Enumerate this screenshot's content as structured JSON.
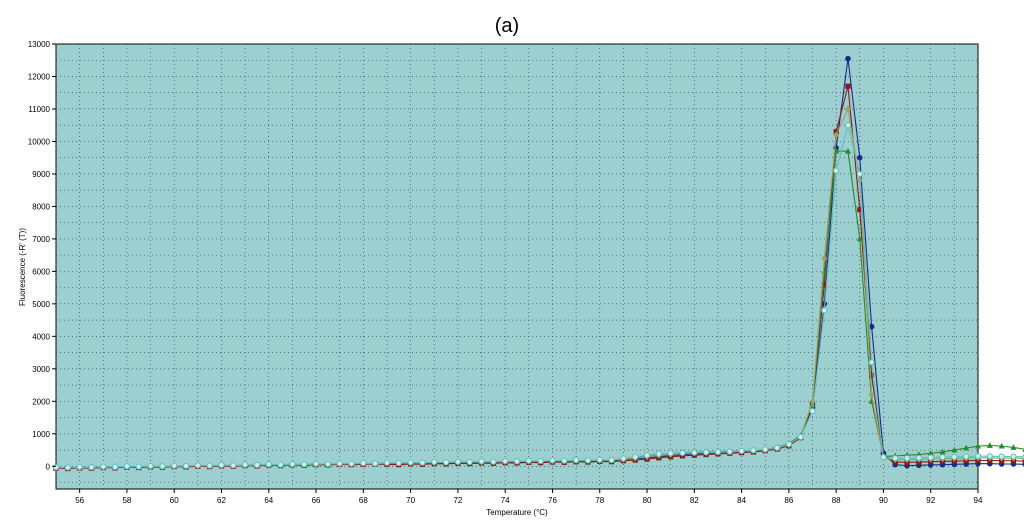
{
  "chart_data": {
    "type": "line",
    "title": "(a)",
    "xlabel": "Temperature (°C)",
    "ylabel": "Fluorescence (-R' (T))",
    "xlim": [
      55,
      94
    ],
    "ylim": [
      -700,
      13000
    ],
    "x_ticks": [
      56,
      58,
      60,
      62,
      64,
      66,
      68,
      70,
      72,
      74,
      76,
      78,
      80,
      82,
      84,
      86,
      88,
      90,
      92,
      94
    ],
    "y_ticks": [
      0,
      1000,
      2000,
      3000,
      4000,
      5000,
      6000,
      7000,
      8000,
      9000,
      10000,
      11000,
      12000,
      13000
    ],
    "grid": true,
    "background_color": "#9ccfcf",
    "x_start": 55,
    "x_step": 0.5,
    "series": [
      {
        "color": "#1a2a8c",
        "marker": "circle",
        "values": [
          -50,
          -60,
          -40,
          -50,
          -30,
          -40,
          -20,
          -30,
          -10,
          -20,
          0,
          -10,
          10,
          0,
          20,
          10,
          30,
          20,
          40,
          30,
          50,
          40,
          60,
          50,
          70,
          60,
          80,
          70,
          90,
          80,
          100,
          90,
          100,
          90,
          110,
          100,
          120,
          110,
          130,
          120,
          140,
          130,
          150,
          140,
          160,
          150,
          170,
          160,
          200,
          230,
          260,
          300,
          330,
          360,
          380,
          400,
          420,
          430,
          450,
          470,
          500,
          550,
          650,
          900,
          1800,
          5000,
          9800,
          12550,
          9500,
          4300,
          400,
          50,
          20,
          30,
          40,
          50,
          60,
          70,
          80,
          80,
          70,
          70,
          60,
          50,
          40
        ]
      },
      {
        "color": "#8b1a1a",
        "marker": "square",
        "values": [
          -60,
          -70,
          -50,
          -60,
          -40,
          -50,
          -30,
          -40,
          -20,
          -30,
          -10,
          -20,
          0,
          -10,
          10,
          0,
          20,
          10,
          30,
          20,
          40,
          30,
          50,
          40,
          60,
          50,
          60,
          70,
          60,
          50,
          70,
          60,
          80,
          70,
          90,
          80,
          100,
          90,
          110,
          100,
          120,
          110,
          130,
          120,
          140,
          130,
          150,
          140,
          170,
          190,
          220,
          260,
          290,
          320,
          340,
          360,
          380,
          400,
          420,
          440,
          480,
          530,
          630,
          880,
          1900,
          5600,
          10300,
          11700,
          7900,
          2800,
          300,
          130,
          120,
          130,
          140,
          150,
          160,
          170,
          180,
          180,
          170,
          170,
          160,
          150,
          140
        ]
      },
      {
        "color": "#2a8a2a",
        "marker": "triangle",
        "values": [
          -40,
          -50,
          -30,
          -40,
          -20,
          -30,
          -10,
          -20,
          0,
          -10,
          10,
          0,
          20,
          10,
          30,
          20,
          40,
          30,
          50,
          40,
          60,
          50,
          70,
          60,
          80,
          70,
          90,
          80,
          100,
          90,
          110,
          100,
          120,
          110,
          130,
          120,
          140,
          130,
          150,
          140,
          160,
          150,
          170,
          160,
          180,
          170,
          190,
          180,
          230,
          280,
          330,
          370,
          400,
          420,
          430,
          440,
          450,
          460,
          470,
          480,
          520,
          580,
          700,
          950,
          1900,
          6000,
          9700,
          9700,
          7000,
          2000,
          300,
          320,
          340,
          360,
          400,
          440,
          500,
          560,
          620,
          640,
          620,
          580,
          520,
          420,
          300
        ]
      },
      {
        "color": "#a0a060",
        "marker": "diamond",
        "values": [
          -50,
          -40,
          -40,
          -30,
          -30,
          -20,
          -20,
          -10,
          -10,
          0,
          0,
          10,
          10,
          20,
          20,
          30,
          30,
          40,
          40,
          50,
          50,
          60,
          60,
          70,
          70,
          80,
          80,
          90,
          90,
          100,
          100,
          110,
          110,
          120,
          120,
          130,
          130,
          140,
          140,
          150,
          150,
          160,
          160,
          170,
          170,
          180,
          180,
          190,
          210,
          250,
          290,
          330,
          360,
          390,
          410,
          420,
          430,
          440,
          460,
          480,
          510,
          560,
          660,
          920,
          2000,
          6400,
          10200,
          11000,
          8800,
          2200,
          250,
          200,
          200,
          210,
          220,
          230,
          240,
          250,
          260,
          260,
          250,
          250,
          240,
          230,
          200
        ]
      },
      {
        "color": "#5fc0c0",
        "marker": "circle-open",
        "values": [
          -30,
          -40,
          -20,
          -30,
          -10,
          -20,
          0,
          -10,
          10,
          0,
          20,
          10,
          30,
          20,
          40,
          30,
          50,
          40,
          60,
          50,
          70,
          60,
          80,
          70,
          90,
          80,
          100,
          90,
          110,
          100,
          120,
          110,
          130,
          120,
          140,
          130,
          150,
          140,
          160,
          150,
          170,
          160,
          180,
          170,
          190,
          180,
          200,
          190,
          240,
          290,
          340,
          380,
          400,
          410,
          420,
          430,
          440,
          450,
          470,
          490,
          520,
          570,
          680,
          900,
          1700,
          4800,
          9100,
          10500,
          9000,
          3200,
          280,
          250,
          250,
          260,
          270,
          280,
          290,
          300,
          310,
          310,
          300,
          300,
          290,
          280,
          260
        ]
      }
    ]
  }
}
